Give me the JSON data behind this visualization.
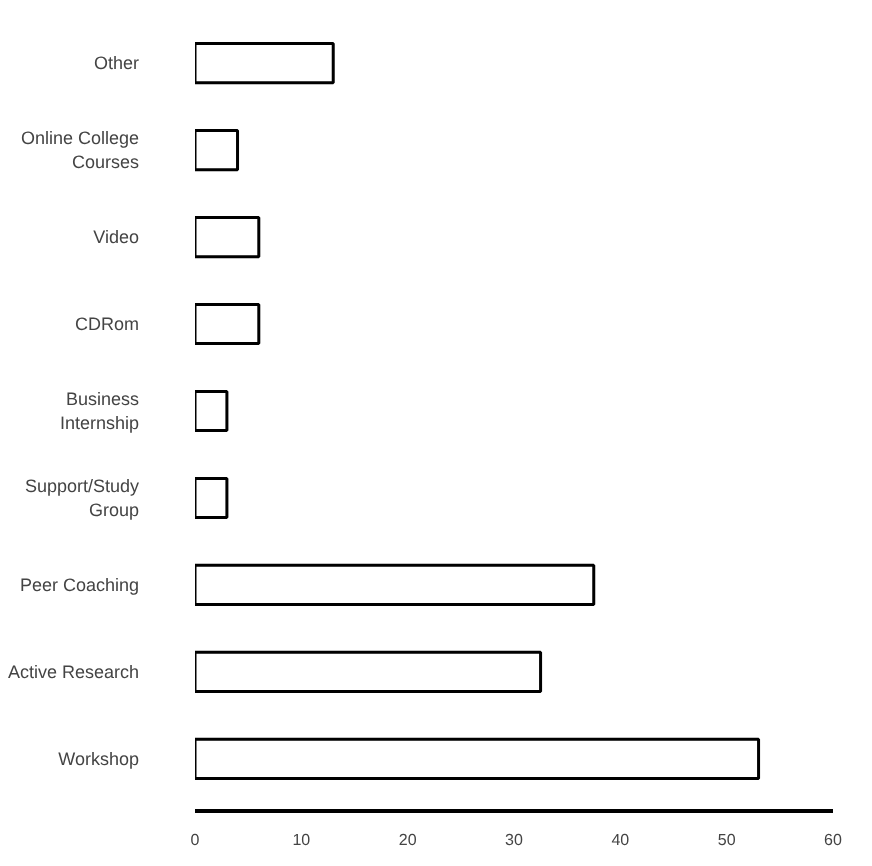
{
  "chart_data": {
    "type": "bar",
    "orientation": "horizontal",
    "categories": [
      "Other",
      "Online College\nCourses",
      "Video",
      "CDRom",
      "Business\nInternship",
      "Support/Study\nGroup",
      "Peer Coaching",
      "Active Research",
      "Workshop"
    ],
    "values": [
      13,
      4,
      6,
      6,
      3,
      3,
      37.5,
      32.5,
      53
    ],
    "color": "#ffffff",
    "xlim": [
      0,
      60
    ],
    "xticks": [
      0,
      10,
      20,
      30,
      40,
      50,
      60
    ],
    "grid": false
  }
}
